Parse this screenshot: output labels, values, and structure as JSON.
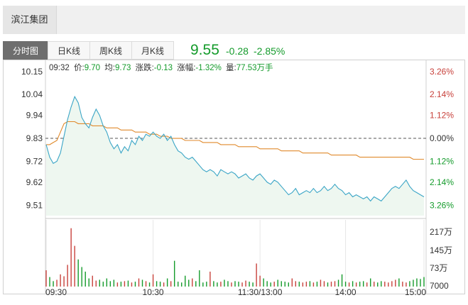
{
  "stock": {
    "name": "滨江集团"
  },
  "tabs": [
    {
      "label": "分时图",
      "active": true
    },
    {
      "label": "日K线",
      "active": false
    },
    {
      "label": "周K线",
      "active": false
    },
    {
      "label": "月K线",
      "active": false
    }
  ],
  "quote": {
    "price": "9.55",
    "change": "-0.28",
    "change_pct": "-2.85%"
  },
  "info_bar": {
    "time": "09:32",
    "price_label": "价:",
    "price_value": "9.70",
    "avg_label": "均:",
    "avg_value": "9.73",
    "change_label": "涨跌:",
    "change_value": "-0.13",
    "pct_label": "涨幅:",
    "pct_value": "-1.32%",
    "vol_label": "量:",
    "vol_value": "77.53万手"
  },
  "colors": {
    "up": "#c8413b",
    "down": "#149b2b",
    "price_line": "#3aa5c6",
    "avg_line": "#e08a2c",
    "area_fill": "#eef7f0"
  },
  "chart_data": {
    "type": "line",
    "prev_close": 9.83,
    "price_axis": {
      "ticks": [
        "10.15",
        "10.04",
        "9.94",
        "9.83",
        "9.72",
        "9.62",
        "9.51"
      ],
      "ylim": [
        9.46,
        10.18
      ]
    },
    "pct_axis": {
      "ticks": [
        "3.26%",
        "2.14%",
        "1.12%",
        "0.00%",
        "1.12%",
        "2.14%",
        "3.26%"
      ]
    },
    "volume_axis": {
      "ticks": [
        "217万",
        "145万",
        "73万",
        "7000"
      ]
    },
    "x_ticks": [
      "09:30",
      "10:30",
      "11:30/13:00",
      "14:00",
      "15:00"
    ],
    "series": [
      {
        "name": "价",
        "values": [
          9.8,
          9.74,
          9.71,
          9.72,
          9.76,
          9.84,
          9.92,
          9.98,
          10.03,
          10.0,
          9.93,
          9.9,
          9.88,
          9.93,
          9.97,
          9.94,
          9.89,
          9.86,
          9.81,
          9.78,
          9.8,
          9.76,
          9.79,
          9.77,
          9.82,
          9.8,
          9.84,
          9.82,
          9.85,
          9.84,
          9.86,
          9.84,
          9.83,
          9.85,
          9.82,
          9.84,
          9.8,
          9.77,
          9.76,
          9.74,
          9.73,
          9.74,
          9.72,
          9.7,
          9.68,
          9.67,
          9.68,
          9.67,
          9.65,
          9.68,
          9.67,
          9.66,
          9.67,
          9.66,
          9.64,
          9.65,
          9.66,
          9.64,
          9.63,
          9.65,
          9.66,
          9.64,
          9.62,
          9.61,
          9.63,
          9.62,
          9.6,
          9.58,
          9.56,
          9.57,
          9.59,
          9.56,
          9.57,
          9.58,
          9.57,
          9.59,
          9.57,
          9.58,
          9.6,
          9.58,
          9.59,
          9.61,
          9.59,
          9.58,
          9.56,
          9.57,
          9.55,
          9.56,
          9.55,
          9.54,
          9.55,
          9.53,
          9.55,
          9.54,
          9.53,
          9.55,
          9.57,
          9.59,
          9.6,
          9.59,
          9.61,
          9.63,
          9.6,
          9.58,
          9.57,
          9.56,
          9.55
        ]
      },
      {
        "name": "均",
        "values": [
          9.8,
          9.8,
          9.81,
          9.82,
          9.86,
          9.9,
          9.91,
          9.91,
          9.91,
          9.9,
          9.9,
          9.9,
          9.9,
          9.89,
          9.89,
          9.89,
          9.89,
          9.88,
          9.88,
          9.88,
          9.88,
          9.87,
          9.87,
          9.87,
          9.87,
          9.86,
          9.86,
          9.86,
          9.86,
          9.85,
          9.85,
          9.85,
          9.84,
          9.84,
          9.84,
          9.83,
          9.83,
          9.83,
          9.83,
          9.82,
          9.82,
          9.82,
          9.82,
          9.82,
          9.81,
          9.81,
          9.81,
          9.81,
          9.81,
          9.8,
          9.8,
          9.8,
          9.8,
          9.8,
          9.79,
          9.79,
          9.79,
          9.79,
          9.79,
          9.79,
          9.78,
          9.78,
          9.78,
          9.78,
          9.78,
          9.78,
          9.77,
          9.77,
          9.77,
          9.77,
          9.77,
          9.77,
          9.76,
          9.76,
          9.76,
          9.76,
          9.76,
          9.76,
          9.76,
          9.76,
          9.75,
          9.75,
          9.75,
          9.75,
          9.75,
          9.75,
          9.75,
          9.75,
          9.74,
          9.74,
          9.74,
          9.74,
          9.74,
          9.74,
          9.74,
          9.74,
          9.74,
          9.74,
          9.74,
          9.74,
          9.74,
          9.74,
          9.74,
          9.73,
          9.73,
          9.73,
          9.73
        ]
      }
    ],
    "volume": {
      "ylim": [
        0,
        230
      ],
      "values": [
        60,
        35,
        20,
        25,
        45,
        38,
        80,
        215,
        150,
        100,
        72,
        55,
        30,
        40,
        22,
        25,
        18,
        30,
        20,
        25,
        15,
        18,
        20,
        22,
        15,
        18,
        30,
        25,
        20,
        15,
        45,
        20,
        18,
        15,
        30,
        20,
        95,
        18,
        15,
        40,
        25,
        30,
        20,
        60,
        15,
        18,
        55,
        20,
        15,
        18,
        25,
        20,
        15,
        20,
        18,
        15,
        22,
        18,
        15,
        85,
        40,
        30,
        20,
        15,
        18,
        25,
        20,
        18,
        15,
        30,
        20,
        18,
        15,
        18,
        20,
        15,
        18,
        25,
        20,
        15,
        18,
        20,
        25,
        45,
        18,
        15,
        20,
        15,
        18,
        20,
        15,
        30,
        18,
        15,
        20,
        18,
        15,
        20,
        25,
        30,
        18,
        15,
        20,
        25,
        30,
        28,
        35
      ]
    }
  }
}
